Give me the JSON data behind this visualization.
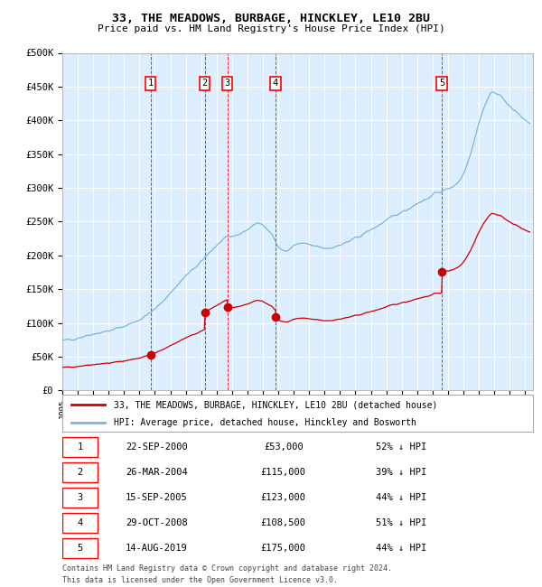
{
  "title": "33, THE MEADOWS, BURBAGE, HINCKLEY, LE10 2BU",
  "subtitle": "Price paid vs. HM Land Registry's House Price Index (HPI)",
  "legend_property": "33, THE MEADOWS, BURBAGE, HINCKLEY, LE10 2BU (detached house)",
  "legend_hpi": "HPI: Average price, detached house, Hinckley and Bosworth",
  "footer1": "Contains HM Land Registry data © Crown copyright and database right 2024.",
  "footer2": "This data is licensed under the Open Government Licence v3.0.",
  "hpi_color": "#7ab8d9",
  "property_color": "#cc0000",
  "background_color": "#ddeeff",
  "ylim": [
    0,
    500000
  ],
  "yticks": [
    0,
    50000,
    100000,
    150000,
    200000,
    250000,
    300000,
    350000,
    400000,
    450000,
    500000
  ],
  "ytick_labels": [
    "£0",
    "£50K",
    "£100K",
    "£150K",
    "£200K",
    "£250K",
    "£300K",
    "£350K",
    "£400K",
    "£450K",
    "£500K"
  ],
  "xlim_start": 1995.0,
  "xlim_end": 2025.5,
  "transactions": [
    {
      "num": 1,
      "date": "22-SEP-2000",
      "year": 2000.72,
      "price": 53000,
      "hpi_pct": "52% ↓ HPI"
    },
    {
      "num": 2,
      "date": "26-MAR-2004",
      "year": 2004.23,
      "price": 115000,
      "hpi_pct": "39% ↓ HPI"
    },
    {
      "num": 3,
      "date": "15-SEP-2005",
      "year": 2005.7,
      "price": 123000,
      "hpi_pct": "44% ↓ HPI"
    },
    {
      "num": 4,
      "date": "29-OCT-2008",
      "year": 2008.82,
      "price": 108500,
      "hpi_pct": "51% ↓ HPI"
    },
    {
      "num": 5,
      "date": "14-AUG-2019",
      "year": 2019.61,
      "price": 175000,
      "hpi_pct": "44% ↓ HPI"
    }
  ]
}
